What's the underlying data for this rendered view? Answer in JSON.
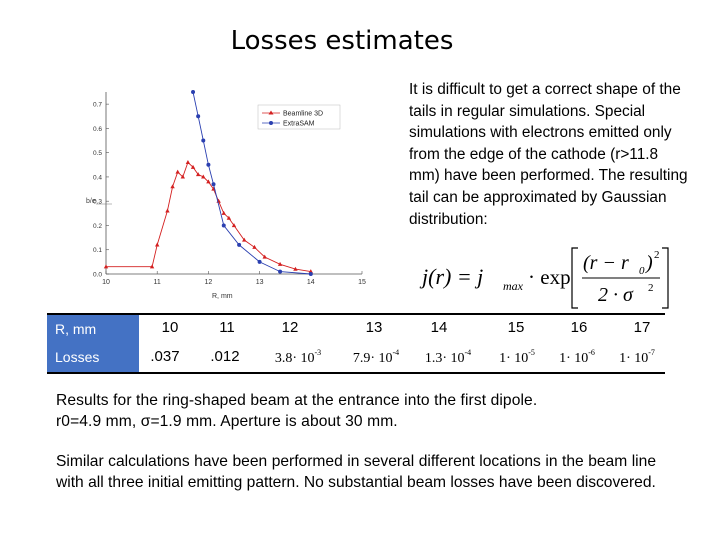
{
  "title": "Losses estimates",
  "description": "It is difficult to get a correct shape of the tails in regular simulations. Special simulations with electrons emitted only from the edge of the cathode (r>11.8 mm) have been performed. The resulting tail can be approximated by Gaussian distribution:",
  "formula": {
    "lhs": "j(r) = j",
    "sub": "max",
    "dot": "· exp",
    "numerator": "(r − r",
    "num_sub": "0",
    "num_close": ")",
    "num_sup": "2",
    "denominator": "2 · σ",
    "den_sup": "2"
  },
  "chart_data": {
    "type": "line",
    "xlabel": "R, mm",
    "ylabel": "",
    "xlim": [
      10,
      15
    ],
    "ylim": [
      0,
      0.75
    ],
    "x_ticks": [
      "10",
      "11",
      "12",
      "13",
      "14",
      "15"
    ],
    "y_ticks": [
      "0.0",
      "0.1",
      "0.2",
      "0.3",
      "0.4",
      "0.5",
      "0.6",
      "0.7"
    ],
    "left_label": "b/e",
    "legend": [
      "Beamline 3D",
      "ExtraSAM"
    ],
    "series": [
      {
        "name": "Beamline 3D",
        "color": "#d42020",
        "x": [
          10.0,
          10.9,
          11.0,
          11.2,
          11.3,
          11.4,
          11.5,
          11.6,
          11.7,
          11.8,
          11.9,
          12.0,
          12.1,
          12.2,
          12.3,
          12.4,
          12.5,
          12.7,
          12.9,
          13.1,
          13.4,
          13.7,
          14.0
        ],
        "y": [
          0.03,
          0.03,
          0.12,
          0.26,
          0.36,
          0.42,
          0.4,
          0.46,
          0.44,
          0.41,
          0.4,
          0.38,
          0.35,
          0.3,
          0.25,
          0.23,
          0.2,
          0.14,
          0.11,
          0.07,
          0.04,
          0.02,
          0.01
        ]
      },
      {
        "name": "ExtraSAM",
        "color": "#2a3fb0",
        "x": [
          11.7,
          11.8,
          11.9,
          12.0,
          12.1,
          12.3,
          12.6,
          13.0,
          13.4,
          14.0
        ],
        "y": [
          0.75,
          0.65,
          0.55,
          0.45,
          0.37,
          0.2,
          0.12,
          0.05,
          0.01,
          0.0
        ]
      }
    ]
  },
  "table": {
    "row_headers": [
      "R,  mm",
      "Losses"
    ],
    "r_values": [
      "10",
      "11",
      "12",
      "13",
      "14",
      "15",
      "16",
      "17"
    ],
    "losses": [
      {
        "text": ".037"
      },
      {
        "text": ".012"
      },
      {
        "m": "3.8",
        "e": "-3"
      },
      {
        "m": "7.9",
        "e": "-4"
      },
      {
        "m": "1.3",
        "e": "-4"
      },
      {
        "m": "1",
        "e": "-5"
      },
      {
        "m": "1",
        "e": "-6"
      },
      {
        "m": "1",
        "e": "-7"
      }
    ],
    "times": "· 10"
  },
  "results": {
    "line1": "Results for the ring-shaped beam at the entrance into the first dipole.",
    "line2": "r0=4.9 mm, σ=1.9 mm.  Aperture is about 30 mm."
  },
  "similar": "Similar calculations have been performed in several different locations in the beam line with all three initial emitting pattern. No substantial beam losses have been discovered."
}
